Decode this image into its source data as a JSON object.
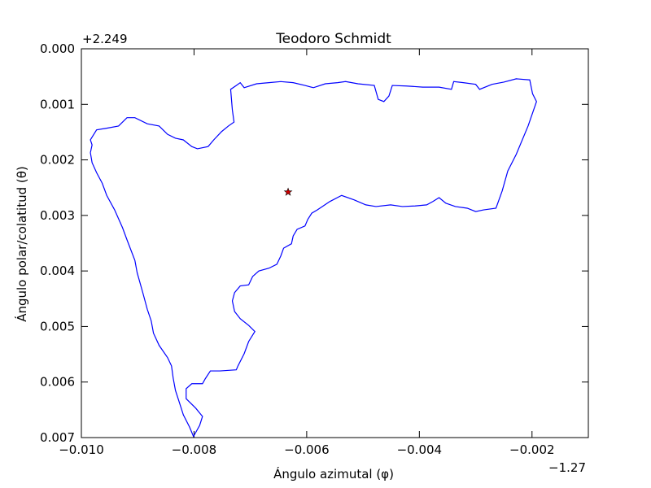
{
  "chart_data": {
    "type": "line",
    "title": "Teodoro Schmidt",
    "xlabel": "Ángulo azimutal (φ)",
    "ylabel": "Ángulo polar/colatitud (θ)",
    "x_offset_label": "−1.27",
    "y_offset_label": "+2.249",
    "xlim": [
      -0.01,
      -0.001
    ],
    "ylim": [
      0,
      0.007
    ],
    "y_inverted": true,
    "xticks": [
      {
        "value": -0.01,
        "label": "−0.010"
      },
      {
        "value": -0.008,
        "label": "−0.008"
      },
      {
        "value": -0.006,
        "label": "−0.006"
      },
      {
        "value": -0.004,
        "label": "−0.004"
      },
      {
        "value": -0.002,
        "label": "−0.002"
      }
    ],
    "yticks": [
      {
        "value": 0,
        "label": "0.000"
      },
      {
        "value": 0.001,
        "label": "0.001"
      },
      {
        "value": 0.002,
        "label": "0.002"
      },
      {
        "value": 0.003,
        "label": "0.003"
      },
      {
        "value": 0.004,
        "label": "0.004"
      },
      {
        "value": 0.005,
        "label": "0.005"
      },
      {
        "value": 0.006,
        "label": "0.006"
      },
      {
        "value": 0.007,
        "label": "0.007"
      }
    ],
    "series": [
      {
        "color": "#0000ff",
        "x": [
          -0.00984,
          -0.00981,
          -0.00984,
          -0.00973,
          -0.00955,
          -0.00934,
          -0.00919,
          -0.00905,
          -0.00883,
          -0.00862,
          -0.00847,
          -0.00833,
          -0.00819,
          -0.00804,
          -0.00794,
          -0.00775,
          -0.00765,
          -0.00751,
          -0.00739,
          -0.00729,
          -0.00732,
          -0.00735,
          -0.00725,
          -0.00718,
          -0.00711,
          -0.00689,
          -0.00667,
          -0.00646,
          -0.00624,
          -0.00603,
          -0.00588,
          -0.00567,
          -0.00545,
          -0.00531,
          -0.00509,
          -0.0048,
          -0.00473,
          -0.00463,
          -0.00454,
          -0.00448,
          -0.00423,
          -0.00394,
          -0.00365,
          -0.00343,
          -0.00339,
          -0.00322,
          -0.003,
          -0.00293,
          -0.00271,
          -0.0025,
          -0.00228,
          -0.00204,
          -0.00199,
          -0.00192,
          -0.00207,
          -0.00228,
          -0.00243,
          -0.00253,
          -0.00264,
          -0.00286,
          -0.003,
          -0.00315,
          -0.00336,
          -0.00353,
          -0.00365,
          -0.00376,
          -0.00387,
          -0.00408,
          -0.0043,
          -0.00451,
          -0.00477,
          -0.00495,
          -0.00516,
          -0.00538,
          -0.00559,
          -0.00581,
          -0.00591,
          -0.00598,
          -0.00603,
          -0.00617,
          -0.00624,
          -0.00627,
          -0.00641,
          -0.00646,
          -0.00653,
          -0.00667,
          -0.00685,
          -0.00696,
          -0.00703,
          -0.00718,
          -0.00728,
          -0.00732,
          -0.00728,
          -0.00718,
          -0.00703,
          -0.00692,
          -0.00703,
          -0.00711,
          -0.00722,
          -0.00725,
          -0.00754,
          -0.00771,
          -0.0078,
          -0.00785,
          -0.00804,
          -0.00814,
          -0.00814,
          -0.00797,
          -0.00785,
          -0.0079,
          -0.00801,
          -0.00808,
          -0.00819,
          -0.00826,
          -0.00833,
          -0.00837,
          -0.0084,
          -0.00847,
          -0.00862,
          -0.00872,
          -0.00876,
          -0.00883,
          -0.00891,
          -0.00901,
          -0.00905,
          -0.00919,
          -0.00927,
          -0.00941,
          -0.00955,
          -0.00963,
          -0.00973,
          -0.00981,
          -0.00984
        ],
        "values": [
          0.00187,
          0.00173,
          0.00164,
          0.00146,
          0.00143,
          0.00139,
          0.00124,
          0.00124,
          0.00135,
          0.00139,
          0.00154,
          0.00161,
          0.00164,
          0.00176,
          0.0018,
          0.00176,
          0.00164,
          0.00149,
          0.00139,
          0.00132,
          0.0011,
          0.00073,
          0.00066,
          0.00061,
          0.0007,
          0.00063,
          0.00061,
          0.00059,
          0.00061,
          0.00066,
          0.0007,
          0.00063,
          0.00061,
          0.00059,
          0.00063,
          0.00066,
          0.00091,
          0.00095,
          0.00085,
          0.00066,
          0.00067,
          0.00069,
          0.00069,
          0.00073,
          0.00059,
          0.00061,
          0.00064,
          0.00073,
          0.00064,
          0.0006,
          0.00054,
          0.00056,
          0.00081,
          0.00095,
          0.00139,
          0.0019,
          0.0022,
          0.00256,
          0.00287,
          0.0029,
          0.00293,
          0.00287,
          0.00284,
          0.00278,
          0.00268,
          0.00275,
          0.00281,
          0.00283,
          0.00284,
          0.00281,
          0.00284,
          0.00281,
          0.00272,
          0.00264,
          0.00275,
          0.0029,
          0.00296,
          0.00307,
          0.00319,
          0.00325,
          0.00337,
          0.00351,
          0.00359,
          0.00373,
          0.00388,
          0.00395,
          0.004,
          0.0041,
          0.00425,
          0.00427,
          0.00439,
          0.00454,
          0.00473,
          0.00486,
          0.00498,
          0.00509,
          0.00527,
          0.00549,
          0.00571,
          0.00578,
          0.0058,
          0.0058,
          0.00594,
          0.00603,
          0.00603,
          0.00612,
          0.0063,
          0.00647,
          0.00662,
          0.00678,
          0.00698,
          0.00681,
          0.00659,
          0.00637,
          0.00615,
          0.00593,
          0.00571,
          0.00556,
          0.00534,
          0.00512,
          0.0049,
          0.00469,
          0.00439,
          0.00403,
          0.00381,
          0.00344,
          0.00322,
          0.0029,
          0.00264,
          0.00242,
          0.00223,
          0.00205,
          0.00187
        ]
      }
    ],
    "markers": [
      {
        "x": -0.00633,
        "y": 0.00258,
        "color": "#cc0000",
        "marker": "star"
      }
    ]
  }
}
